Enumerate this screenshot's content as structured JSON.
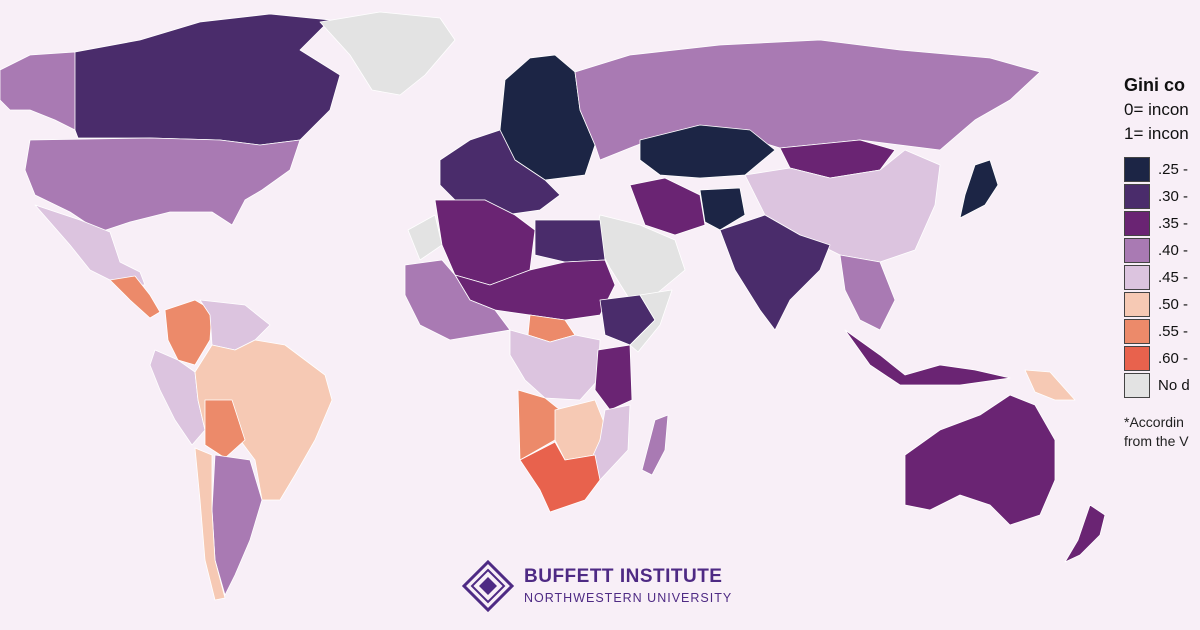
{
  "legend": {
    "title": "Gini co",
    "line0": "0= incon",
    "line1": "1= incon",
    "bins": [
      {
        "label": ".25 -",
        "color": "#1c2545"
      },
      {
        "label": ".30 -",
        "color": "#4a2c6b"
      },
      {
        "label": ".35 -",
        "color": "#6a2473"
      },
      {
        "label": ".40 -",
        "color": "#a97ab3"
      },
      {
        "label": ".45 -",
        "color": "#dcc4df"
      },
      {
        "label": ".50 -",
        "color": "#f6c9b4"
      },
      {
        "label": ".55 -",
        "color": "#ec8a6a"
      },
      {
        "label": ".60 -",
        "color": "#e8624d"
      },
      {
        "label": "No d",
        "color": "#e3e3e3"
      }
    ],
    "note_line1": "*Accordin",
    "note_line2": "from the V"
  },
  "brand": {
    "name": "BUFFETT INSTITUTE",
    "subtitle": "NORTHWESTERN UNIVERSITY"
  },
  "regions": [
    {
      "name": "canada",
      "bin": ".30 -"
    },
    {
      "name": "alaska",
      "bin": ".40 -"
    },
    {
      "name": "greenland",
      "bin": "No d"
    },
    {
      "name": "united-states",
      "bin": ".40 -"
    },
    {
      "name": "mexico",
      "bin": ".45 -"
    },
    {
      "name": "central-america",
      "bin": ".55 -"
    },
    {
      "name": "colombia",
      "bin": ".55 -"
    },
    {
      "name": "venezuela-guianas",
      "bin": ".45 -"
    },
    {
      "name": "brazil",
      "bin": ".50 -"
    },
    {
      "name": "peru-ecuador",
      "bin": ".45 -"
    },
    {
      "name": "bolivia",
      "bin": ".55 -"
    },
    {
      "name": "argentina",
      "bin": ".40 -"
    },
    {
      "name": "chile",
      "bin": ".50 -"
    },
    {
      "name": "northern-europe",
      "bin": ".25 -"
    },
    {
      "name": "western-europe",
      "bin": ".30 -"
    },
    {
      "name": "russia",
      "bin": ".40 -"
    },
    {
      "name": "kazakhstan",
      "bin": ".25 -"
    },
    {
      "name": "mongolia",
      "bin": ".35 -"
    },
    {
      "name": "china",
      "bin": ".45 -"
    },
    {
      "name": "iran",
      "bin": ".35 -"
    },
    {
      "name": "arabian-peninsula",
      "bin": "No d"
    },
    {
      "name": "afghanistan",
      "bin": ".25 -"
    },
    {
      "name": "india",
      "bin": ".30 -"
    },
    {
      "name": "southeast-asia",
      "bin": ".40 -"
    },
    {
      "name": "japan",
      "bin": ".25 -"
    },
    {
      "name": "indonesia",
      "bin": ".35 -"
    },
    {
      "name": "papua-new-guinea",
      "bin": ".50 -"
    },
    {
      "name": "australia",
      "bin": ".35 -"
    },
    {
      "name": "new-zealand",
      "bin": ".35 -"
    },
    {
      "name": "north-africa",
      "bin": ".35 -"
    },
    {
      "name": "western-sahara",
      "bin": "No d"
    },
    {
      "name": "egypt",
      "bin": ".30 -"
    },
    {
      "name": "sahel",
      "bin": ".35 -"
    },
    {
      "name": "west-africa",
      "bin": ".40 -"
    },
    {
      "name": "central-african-republic",
      "bin": ".55 -"
    },
    {
      "name": "ethiopia",
      "bin": ".30 -"
    },
    {
      "name": "somalia",
      "bin": "No d"
    },
    {
      "name": "congo",
      "bin": ".45 -"
    },
    {
      "name": "tanzania",
      "bin": ".35 -"
    },
    {
      "name": "angola",
      "bin": ".55 -"
    },
    {
      "name": "zambia-zimbabwe",
      "bin": ".50 -"
    },
    {
      "name": "mozambique",
      "bin": ".45 -"
    },
    {
      "name": "southern-africa",
      "bin": ".60 -"
    },
    {
      "name": "madagascar",
      "bin": ".40 -"
    }
  ]
}
